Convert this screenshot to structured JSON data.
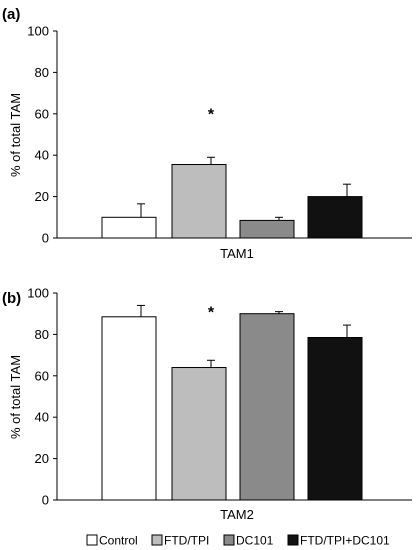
{
  "chart_data": [
    {
      "type": "bar",
      "panel_label": "(a)",
      "xlabel": "TAM1",
      "ylabel": "% of total TAM",
      "ylim": [
        0,
        100
      ],
      "yticks": [
        0,
        20,
        40,
        60,
        80,
        100
      ],
      "categories": [
        "Control",
        "FTD/TPI",
        "DC101",
        "FTD/TPI+DC101"
      ],
      "values": [
        10,
        35.5,
        8.5,
        20
      ],
      "errors": [
        6.5,
        3.5,
        1.5,
        6
      ],
      "colors": [
        "#ffffff",
        "#bdbdbd",
        "#8a8a8a",
        "#111111"
      ],
      "annotation": {
        "text": "*",
        "category_index": 1,
        "y": 61
      },
      "grid": false
    },
    {
      "type": "bar",
      "panel_label": "(b)",
      "xlabel": "TAM2",
      "ylabel": "% of total TAM",
      "ylim": [
        0,
        100
      ],
      "yticks": [
        0,
        20,
        40,
        60,
        80,
        100
      ],
      "categories": [
        "Control",
        "FTD/TPI",
        "DC101",
        "FTD/TPI+DC101"
      ],
      "values": [
        88.5,
        64,
        90,
        78.5
      ],
      "errors": [
        5.5,
        3.5,
        1,
        6
      ],
      "colors": [
        "#ffffff",
        "#bdbdbd",
        "#8a8a8a",
        "#111111"
      ],
      "annotation": {
        "text": "*",
        "category_index": 1,
        "y": 92
      },
      "grid": false
    }
  ],
  "legend": {
    "placement": "bottom",
    "items": [
      {
        "label": "Control",
        "color": "#ffffff"
      },
      {
        "label": "FTD/TPI",
        "color": "#bdbdbd"
      },
      {
        "label": "DC101",
        "color": "#8a8a8a"
      },
      {
        "label": "FTD/TPI+DC101",
        "color": "#111111"
      }
    ]
  }
}
